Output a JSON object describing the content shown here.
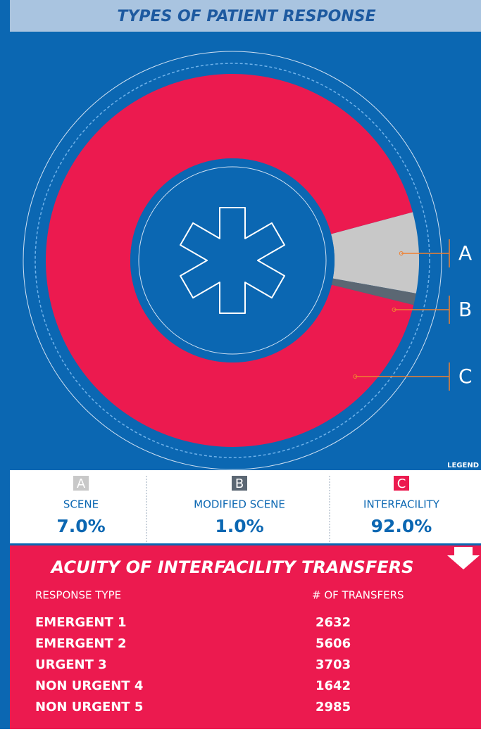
{
  "chart_data": {
    "type": "donut",
    "title": "TYPES OF PATIENT RESPONSE",
    "categories": [
      "SCENE",
      "MODIFIED SCENE",
      "INTERFACILITY"
    ],
    "keys": [
      "A",
      "B",
      "C"
    ],
    "values": [
      7.0,
      1.0,
      92.0
    ],
    "value_labels": [
      "7.0%",
      "1.0%",
      "92.0%"
    ],
    "colors": [
      "#c8c8c8",
      "#5b6773",
      "#ec1a4f"
    ],
    "legend_title": "LEGEND"
  },
  "table": {
    "title": "ACUITY OF INTERFACILITY TRANSFERS",
    "columns": [
      "RESPONSE TYPE",
      "# OF TRANSFERS"
    ],
    "rows": [
      [
        "EMERGENT 1",
        "2632"
      ],
      [
        "EMERGENT 2",
        "5606"
      ],
      [
        "URGENT 3",
        "3703"
      ],
      [
        "NON URGENT 4",
        "1642"
      ],
      [
        "NON URGENT 5",
        "2985"
      ]
    ]
  }
}
